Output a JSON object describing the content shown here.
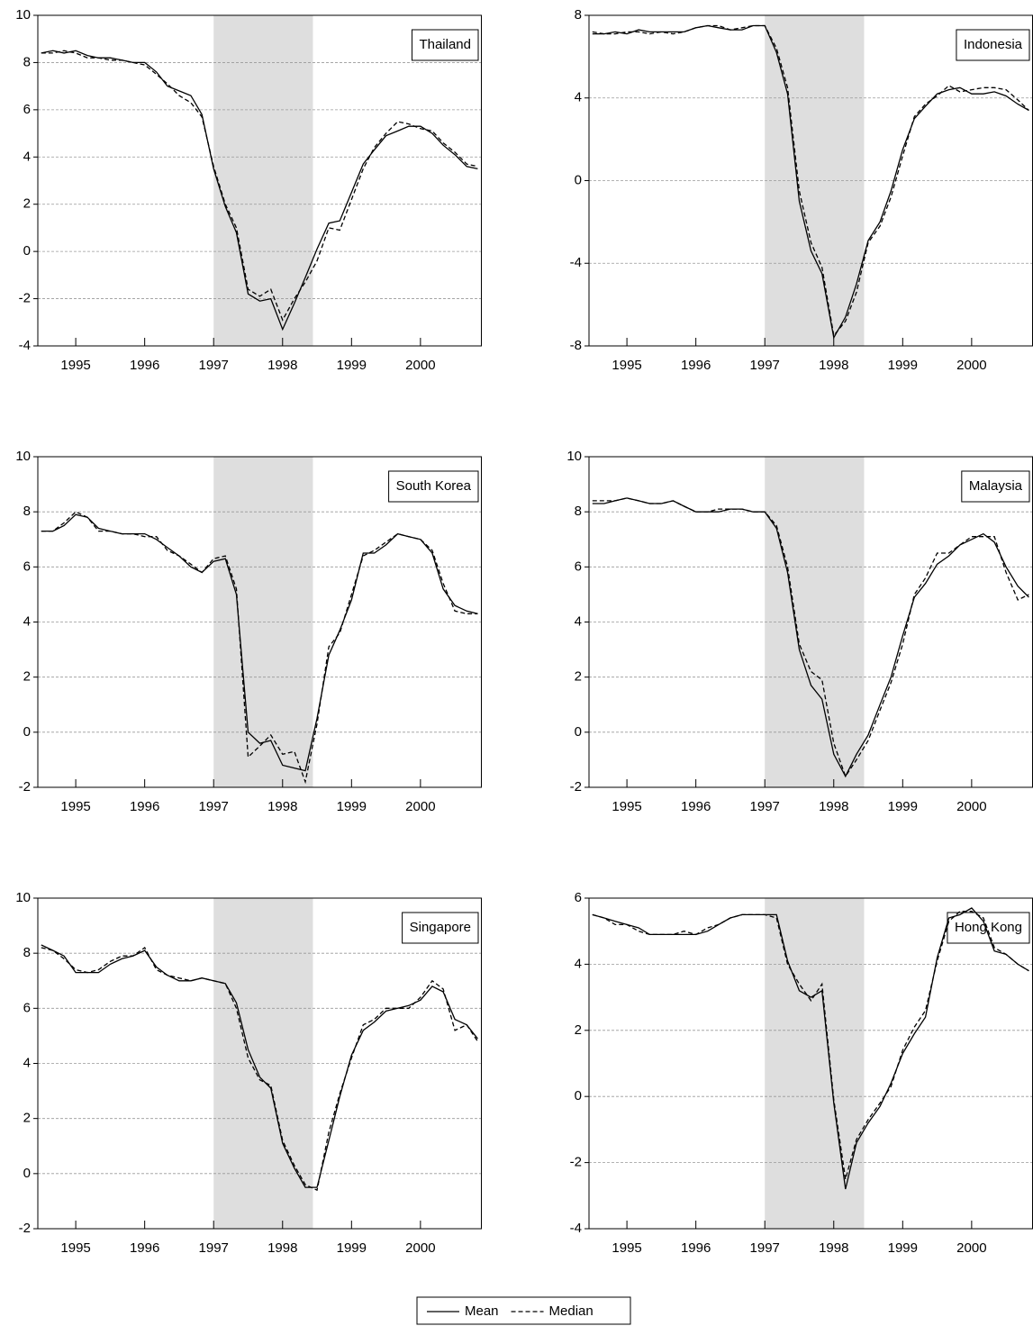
{
  "chart_data": [
    {
      "type": "line",
      "label": "Thailand",
      "x": [
        1994.5,
        1994.67,
        1994.83,
        1995,
        1995.17,
        1995.33,
        1995.5,
        1995.67,
        1995.83,
        1996,
        1996.17,
        1996.33,
        1996.5,
        1996.67,
        1996.83,
        1997,
        1997.17,
        1997.33,
        1997.5,
        1997.67,
        1997.83,
        1998,
        1998.17,
        1998.33,
        1998.5,
        1998.67,
        1998.83,
        1999,
        1999.17,
        1999.33,
        1999.5,
        1999.67,
        1999.83,
        2000,
        2000.17,
        2000.33,
        2000.5,
        2000.67,
        2000.83
      ],
      "series": [
        {
          "name": "Mean",
          "color": "#000000",
          "style": "solid",
          "values": [
            8.4,
            8.5,
            8.4,
            8.5,
            8.3,
            8.2,
            8.2,
            8.1,
            8.0,
            8.0,
            7.6,
            7.0,
            6.8,
            6.6,
            5.8,
            3.5,
            1.9,
            0.8,
            -1.8,
            -2.1,
            -2.0,
            -3.3,
            -2.2,
            -1.1,
            0.1,
            1.2,
            1.3,
            2.5,
            3.7,
            4.3,
            4.9,
            5.1,
            5.3,
            5.3,
            5.0,
            4.5,
            4.1,
            3.6,
            3.5
          ]
        },
        {
          "name": "Median",
          "color": "#000000",
          "style": "dashed",
          "values": [
            8.4,
            8.4,
            8.5,
            8.4,
            8.2,
            8.2,
            8.1,
            8.1,
            8.0,
            7.9,
            7.5,
            7.1,
            6.6,
            6.3,
            5.7,
            3.6,
            2.0,
            1.0,
            -1.6,
            -1.9,
            -1.6,
            -2.9,
            -2.0,
            -1.3,
            -0.4,
            1.0,
            0.9,
            2.2,
            3.5,
            4.4,
            5.0,
            5.5,
            5.4,
            5.2,
            5.1,
            4.6,
            4.2,
            3.7,
            3.6
          ]
        }
      ],
      "xlim": [
        1994.45,
        2000.89
      ],
      "xticks": [
        1995,
        1996,
        1997,
        1998,
        1999,
        2000
      ],
      "ylim": [
        -4,
        10
      ],
      "yticks": [
        -4,
        -2,
        0,
        2,
        4,
        6,
        8,
        10
      ],
      "grid": true,
      "shade": [
        1997,
        1998.44
      ]
    },
    {
      "type": "line",
      "label": "Indonesia",
      "x": [
        1994.5,
        1994.67,
        1994.83,
        1995,
        1995.17,
        1995.33,
        1995.5,
        1995.67,
        1995.83,
        1996,
        1996.17,
        1996.33,
        1996.5,
        1996.67,
        1996.83,
        1997,
        1997.17,
        1997.33,
        1997.5,
        1997.67,
        1997.83,
        1998,
        1998.17,
        1998.33,
        1998.5,
        1998.67,
        1998.83,
        1999,
        1999.17,
        1999.33,
        1999.5,
        1999.67,
        1999.83,
        2000,
        2000.17,
        2000.33,
        2000.5,
        2000.67,
        2000.83
      ],
      "series": [
        {
          "name": "Mean",
          "color": "#000000",
          "style": "solid",
          "values": [
            7.1,
            7.1,
            7.2,
            7.1,
            7.3,
            7.2,
            7.2,
            7.2,
            7.2,
            7.4,
            7.5,
            7.4,
            7.3,
            7.3,
            7.5,
            7.5,
            6.2,
            4.2,
            -1.0,
            -3.4,
            -4.5,
            -7.6,
            -6.6,
            -5.0,
            -2.9,
            -2.0,
            -0.5,
            1.5,
            3.0,
            3.6,
            4.2,
            4.4,
            4.5,
            4.2,
            4.2,
            4.3,
            4.1,
            3.7,
            3.4
          ]
        },
        {
          "name": "Median",
          "color": "#000000",
          "style": "dashed",
          "values": [
            7.2,
            7.1,
            7.1,
            7.2,
            7.2,
            7.1,
            7.2,
            7.1,
            7.2,
            7.4,
            7.5,
            7.5,
            7.3,
            7.4,
            7.5,
            7.5,
            6.4,
            4.5,
            -0.5,
            -3.0,
            -4.2,
            -7.5,
            -6.8,
            -5.4,
            -3.0,
            -2.2,
            -0.8,
            1.2,
            3.1,
            3.7,
            4.1,
            4.6,
            4.3,
            4.4,
            4.5,
            4.5,
            4.4,
            3.9,
            3.4
          ]
        }
      ],
      "xlim": [
        1994.45,
        2000.89
      ],
      "xticks": [
        1995,
        1996,
        1997,
        1998,
        1999,
        2000
      ],
      "ylim": [
        -8,
        8
      ],
      "yticks": [
        -8,
        -4,
        0,
        4,
        8
      ],
      "grid": true,
      "shade": [
        1997,
        1998.44
      ]
    },
    {
      "type": "line",
      "label": "South Korea",
      "x": [
        1994.5,
        1994.67,
        1994.83,
        1995,
        1995.17,
        1995.33,
        1995.5,
        1995.67,
        1995.83,
        1996,
        1996.17,
        1996.33,
        1996.5,
        1996.67,
        1996.83,
        1997,
        1997.17,
        1997.33,
        1997.5,
        1997.67,
        1997.83,
        1998,
        1998.17,
        1998.33,
        1998.5,
        1998.67,
        1998.83,
        1999,
        1999.17,
        1999.33,
        1999.5,
        1999.67,
        1999.83,
        2000,
        2000.17,
        2000.33,
        2000.5,
        2000.67,
        2000.83
      ],
      "series": [
        {
          "name": "Mean",
          "color": "#000000",
          "style": "solid",
          "values": [
            7.3,
            7.3,
            7.5,
            7.9,
            7.8,
            7.4,
            7.3,
            7.2,
            7.2,
            7.2,
            7.0,
            6.7,
            6.4,
            6.0,
            5.8,
            6.2,
            6.3,
            5.0,
            0.0,
            -0.4,
            -0.3,
            -1.2,
            -1.3,
            -1.4,
            0.5,
            2.8,
            3.7,
            4.8,
            6.5,
            6.5,
            6.8,
            7.2,
            7.1,
            7.0,
            6.5,
            5.2,
            4.6,
            4.4,
            4.3
          ]
        },
        {
          "name": "Median",
          "color": "#000000",
          "style": "dashed",
          "values": [
            7.3,
            7.3,
            7.6,
            8.0,
            7.8,
            7.3,
            7.3,
            7.2,
            7.2,
            7.1,
            7.1,
            6.6,
            6.4,
            6.1,
            5.8,
            6.3,
            6.4,
            5.2,
            -0.9,
            -0.5,
            -0.1,
            -0.8,
            -0.7,
            -1.8,
            0.3,
            3.1,
            3.6,
            5.0,
            6.4,
            6.6,
            6.9,
            7.2,
            7.1,
            7.0,
            6.6,
            5.4,
            4.4,
            4.3,
            4.3
          ]
        }
      ],
      "xlim": [
        1994.45,
        2000.89
      ],
      "xticks": [
        1995,
        1996,
        1997,
        1998,
        1999,
        2000
      ],
      "ylim": [
        -2,
        10
      ],
      "yticks": [
        -2,
        0,
        2,
        4,
        6,
        8,
        10
      ],
      "grid": true,
      "shade": [
        1997,
        1998.44
      ]
    },
    {
      "type": "line",
      "label": "Malaysia",
      "x": [
        1994.5,
        1994.67,
        1994.83,
        1995,
        1995.17,
        1995.33,
        1995.5,
        1995.67,
        1995.83,
        1996,
        1996.17,
        1996.33,
        1996.5,
        1996.67,
        1996.83,
        1997,
        1997.17,
        1997.33,
        1997.5,
        1997.67,
        1997.83,
        1998,
        1998.17,
        1998.33,
        1998.5,
        1998.67,
        1998.83,
        1999,
        1999.17,
        1999.33,
        1999.5,
        1999.67,
        1999.83,
        2000,
        2000.17,
        2000.33,
        2000.5,
        2000.67,
        2000.83
      ],
      "series": [
        {
          "name": "Mean",
          "color": "#000000",
          "style": "solid",
          "values": [
            8.3,
            8.3,
            8.4,
            8.5,
            8.4,
            8.3,
            8.3,
            8.4,
            8.2,
            8.0,
            8.0,
            8.0,
            8.1,
            8.1,
            8.0,
            8.0,
            7.4,
            5.8,
            3.0,
            1.7,
            1.2,
            -0.8,
            -1.6,
            -0.8,
            -0.1,
            1.0,
            2.0,
            3.5,
            4.9,
            5.4,
            6.1,
            6.4,
            6.8,
            7.0,
            7.2,
            6.9,
            6.0,
            5.3,
            4.9
          ]
        },
        {
          "name": "Median",
          "color": "#000000",
          "style": "dashed",
          "values": [
            8.4,
            8.4,
            8.4,
            8.5,
            8.4,
            8.3,
            8.3,
            8.4,
            8.2,
            8.0,
            8.0,
            8.1,
            8.1,
            8.1,
            8.0,
            8.0,
            7.5,
            6.0,
            3.2,
            2.2,
            1.9,
            -0.4,
            -1.6,
            -1.0,
            -0.3,
            0.8,
            1.8,
            3.2,
            5.0,
            5.6,
            6.5,
            6.5,
            6.8,
            7.1,
            7.1,
            7.1,
            5.8,
            4.8,
            5.0
          ]
        }
      ],
      "xlim": [
        1994.45,
        2000.89
      ],
      "xticks": [
        1995,
        1996,
        1997,
        1998,
        1999,
        2000
      ],
      "ylim": [
        -2,
        10
      ],
      "yticks": [
        -2,
        0,
        2,
        4,
        6,
        8,
        10
      ],
      "grid": true,
      "shade": [
        1997,
        1998.44
      ]
    },
    {
      "type": "line",
      "label": "Singapore",
      "x": [
        1994.5,
        1994.67,
        1994.83,
        1995,
        1995.17,
        1995.33,
        1995.5,
        1995.67,
        1995.83,
        1996,
        1996.17,
        1996.33,
        1996.5,
        1996.67,
        1996.83,
        1997,
        1997.17,
        1997.33,
        1997.5,
        1997.67,
        1997.83,
        1998,
        1998.17,
        1998.33,
        1998.5,
        1998.67,
        1998.83,
        1999,
        1999.17,
        1999.33,
        1999.5,
        1999.67,
        1999.83,
        2000,
        2000.17,
        2000.33,
        2000.5,
        2000.67,
        2000.83
      ],
      "series": [
        {
          "name": "Mean",
          "color": "#000000",
          "style": "solid",
          "values": [
            8.3,
            8.1,
            7.9,
            7.3,
            7.3,
            7.3,
            7.6,
            7.8,
            7.9,
            8.1,
            7.5,
            7.2,
            7.0,
            7.0,
            7.1,
            7.0,
            6.9,
            6.2,
            4.5,
            3.5,
            3.1,
            1.1,
            0.2,
            -0.5,
            -0.5,
            1.2,
            2.8,
            4.3,
            5.2,
            5.5,
            5.9,
            6.0,
            6.1,
            6.3,
            6.8,
            6.6,
            5.6,
            5.4,
            4.9
          ]
        },
        {
          "name": "Median",
          "color": "#000000",
          "style": "dashed",
          "values": [
            8.2,
            8.1,
            7.8,
            7.4,
            7.3,
            7.4,
            7.7,
            7.9,
            7.9,
            8.2,
            7.4,
            7.2,
            7.1,
            7.0,
            7.1,
            7.0,
            6.9,
            6.0,
            4.2,
            3.4,
            3.2,
            1.2,
            0.3,
            -0.4,
            -0.6,
            1.5,
            2.9,
            4.2,
            5.4,
            5.6,
            6.0,
            6.0,
            6.0,
            6.4,
            7.0,
            6.7,
            5.2,
            5.4,
            4.8
          ]
        }
      ],
      "xlim": [
        1994.45,
        2000.89
      ],
      "xticks": [
        1995,
        1996,
        1997,
        1998,
        1999,
        2000
      ],
      "ylim": [
        -2,
        10
      ],
      "yticks": [
        -2,
        0,
        2,
        4,
        6,
        8,
        10
      ],
      "grid": true,
      "shade": [
        1997,
        1998.44
      ]
    },
    {
      "type": "line",
      "label": "Hong Kong",
      "x": [
        1994.5,
        1994.67,
        1994.83,
        1995,
        1995.17,
        1995.33,
        1995.5,
        1995.67,
        1995.83,
        1996,
        1996.17,
        1996.33,
        1996.5,
        1996.67,
        1996.83,
        1997,
        1997.17,
        1997.33,
        1997.5,
        1997.67,
        1997.83,
        1998,
        1998.17,
        1998.33,
        1998.5,
        1998.67,
        1998.83,
        1999,
        1999.17,
        1999.33,
        1999.5,
        1999.67,
        1999.83,
        2000,
        2000.17,
        2000.33,
        2000.5,
        2000.67,
        2000.83
      ],
      "series": [
        {
          "name": "Mean",
          "color": "#000000",
          "style": "solid",
          "values": [
            5.5,
            5.4,
            5.3,
            5.2,
            5.1,
            4.9,
            4.9,
            4.9,
            4.9,
            4.9,
            5.0,
            5.2,
            5.4,
            5.5,
            5.5,
            5.5,
            5.5,
            4.1,
            3.2,
            3.0,
            3.2,
            -0.2,
            -2.8,
            -1.4,
            -0.8,
            -0.3,
            0.4,
            1.3,
            1.9,
            2.4,
            4.2,
            5.4,
            5.5,
            5.7,
            5.3,
            4.4,
            4.3,
            4.0,
            3.8
          ]
        },
        {
          "name": "Median",
          "color": "#000000",
          "style": "dashed",
          "values": [
            5.5,
            5.4,
            5.2,
            5.2,
            5.0,
            4.9,
            4.9,
            4.9,
            5.0,
            4.9,
            5.1,
            5.2,
            5.4,
            5.5,
            5.5,
            5.5,
            5.4,
            4.0,
            3.4,
            2.9,
            3.4,
            -0.1,
            -2.5,
            -1.3,
            -0.7,
            -0.2,
            0.3,
            1.4,
            2.1,
            2.6,
            4.1,
            5.3,
            5.6,
            5.6,
            5.4,
            4.5,
            4.3,
            4.0,
            3.8
          ]
        }
      ],
      "xlim": [
        1994.45,
        2000.89
      ],
      "xticks": [
        1995,
        1996,
        1997,
        1998,
        1999,
        2000
      ],
      "ylim": [
        -4,
        6
      ],
      "yticks": [
        -4,
        -2,
        0,
        2,
        4,
        6
      ],
      "grid": true,
      "shade": [
        1997,
        1998.44
      ]
    }
  ]
}
